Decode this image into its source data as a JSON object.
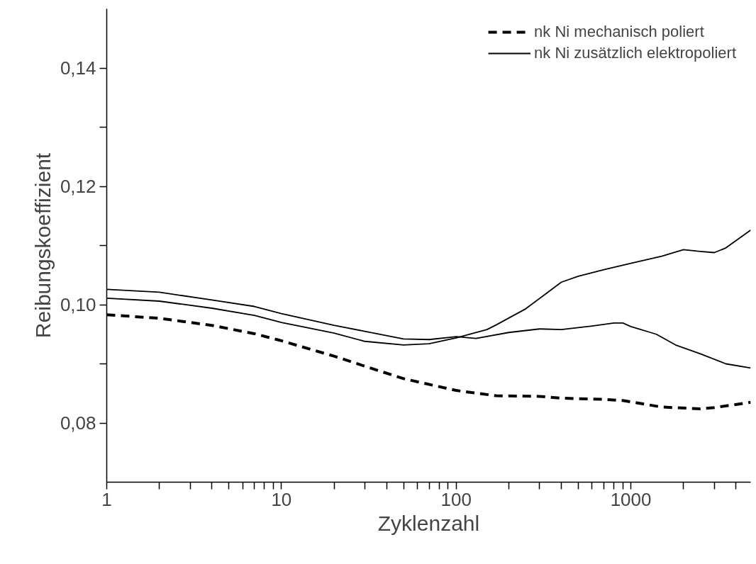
{
  "chart_data": {
    "type": "line",
    "xlabel": "Zyklenzahl",
    "ylabel": "Reibungskoeffizient",
    "log": "x",
    "grid": false,
    "legend": "top right",
    "marker": "none",
    "xlim": [
      1,
      4850
    ],
    "ylim": [
      0.07,
      0.15
    ],
    "xticks": [
      1,
      {
        "value": 2,
        "label": null
      },
      {
        "value": 3,
        "label": null
      },
      {
        "value": 4,
        "label": null
      },
      {
        "value": 5,
        "label": null
      },
      {
        "value": 6,
        "label": null
      },
      {
        "value": 7,
        "label": null
      },
      {
        "value": 8,
        "label": null
      },
      {
        "value": 9,
        "label": null
      },
      10,
      {
        "value": 20,
        "label": null
      },
      {
        "value": 30,
        "label": null
      },
      {
        "value": 40,
        "label": null
      },
      {
        "value": 50,
        "label": null
      },
      {
        "value": 60,
        "label": null
      },
      {
        "value": 70,
        "label": null
      },
      {
        "value": 80,
        "label": null
      },
      {
        "value": 90,
        "label": null
      },
      100,
      {
        "value": 200,
        "label": null
      },
      {
        "value": 300,
        "label": null
      },
      {
        "value": 400,
        "label": null
      },
      {
        "value": 500,
        "label": null
      },
      {
        "value": 600,
        "label": null
      },
      {
        "value": 700,
        "label": null
      },
      {
        "value": 800,
        "label": null
      },
      {
        "value": 900,
        "label": null
      },
      1000,
      {
        "value": 2000,
        "label": null
      },
      {
        "value": 3000,
        "label": null
      },
      {
        "value": 4000,
        "label": null
      }
    ],
    "yticks": [
      {
        "value": 0.08,
        "label": "0,08"
      },
      {
        "value": 0.09,
        "label": null
      },
      {
        "value": 0.1,
        "label": "0,10"
      },
      {
        "value": 0.11,
        "label": null
      },
      {
        "value": 0.12,
        "label": "0,12"
      },
      {
        "value": 0.13,
        "label": null
      },
      {
        "value": 0.14,
        "label": "0,14"
      }
    ],
    "series": [
      {
        "name": "nk Ni mechanisch poliert",
        "color": "#000000",
        "line_style": "dashed",
        "x": [
          1,
          2,
          4,
          7,
          10,
          20,
          30,
          50,
          100,
          170,
          300,
          400,
          700,
          900,
          1500,
          2500,
          3000,
          4850
        ],
        "values": [
          0.0983,
          0.0977,
          0.0965,
          0.0951,
          0.0939,
          0.0913,
          0.0896,
          0.0875,
          0.0855,
          0.0846,
          0.0845,
          0.0842,
          0.084,
          0.0838,
          0.0827,
          0.0824,
          0.0826,
          0.0835
        ]
      },
      {
        "name": "nk Ni zusätzlich elektropoliert",
        "color": "#000000",
        "line_style": "solid",
        "x": [
          1,
          2,
          4,
          7,
          10,
          20,
          30,
          50,
          70,
          100,
          150,
          170,
          250,
          400,
          500,
          700,
          1000,
          1500,
          2000,
          2500,
          3000,
          3500,
          4850
        ],
        "values": [
          0.1011,
          0.1006,
          0.0994,
          0.0982,
          0.097,
          0.0952,
          0.0938,
          0.0932,
          0.0934,
          0.0944,
          0.0958,
          0.0966,
          0.0993,
          0.1038,
          0.1048,
          0.1059,
          0.107,
          0.1082,
          0.1093,
          0.109,
          0.1088,
          0.1096,
          0.1126
        ]
      },
      {
        "color": "#000000",
        "line_style": "solid",
        "x": [
          1,
          2,
          4,
          7,
          10,
          20,
          30,
          50,
          70,
          100,
          130,
          200,
          300,
          400,
          600,
          800,
          900,
          1000,
          1400,
          1800,
          2500,
          3500,
          4850
        ],
        "values": [
          0.1026,
          0.1021,
          0.1008,
          0.0997,
          0.0985,
          0.0965,
          0.0955,
          0.0942,
          0.0941,
          0.0946,
          0.0943,
          0.0953,
          0.0959,
          0.0958,
          0.0964,
          0.0969,
          0.0969,
          0.0963,
          0.095,
          0.0932,
          0.0917,
          0.09,
          0.0893
        ]
      }
    ]
  }
}
